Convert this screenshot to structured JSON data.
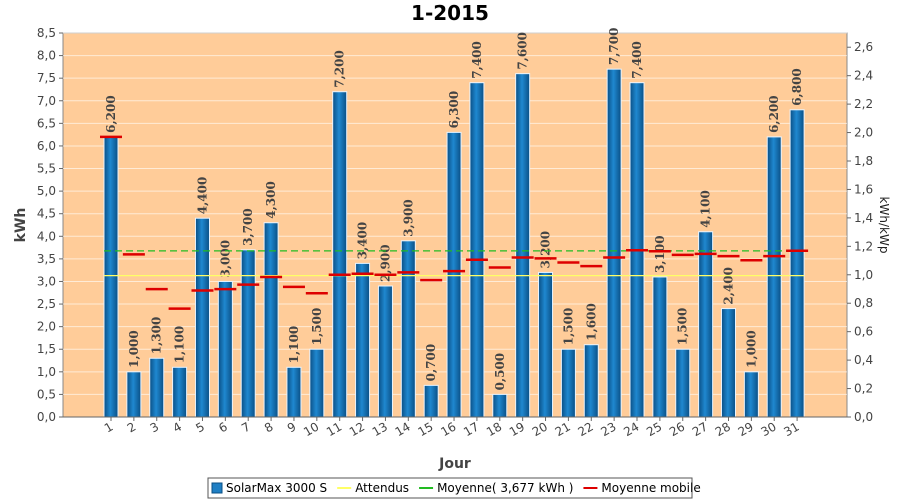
{
  "chart_data": {
    "type": "bar",
    "title": "1-2015",
    "xlabel": "Jour",
    "ylabel": "kWh",
    "ylabel_right": "kWh/kWp",
    "ylim": [
      0,
      8.5
    ],
    "y_ticks": [
      "0,0",
      "0,5",
      "1,0",
      "1,5",
      "2,0",
      "2,5",
      "3,0",
      "3,5",
      "4,0",
      "4,5",
      "5,0",
      "5,5",
      "6,0",
      "6,5",
      "7,0",
      "7,5",
      "8,0",
      "8,5"
    ],
    "ylim_right": [
      0,
      2.7
    ],
    "y_ticks_right": [
      "0,0",
      "0,2",
      "0,4",
      "0,6",
      "0,8",
      "1,0",
      "1,2",
      "1,4",
      "1,6",
      "1,8",
      "2,0",
      "2,2",
      "2,4",
      "2,6"
    ],
    "categories": [
      "1",
      "2",
      "3",
      "4",
      "5",
      "6",
      "7",
      "8",
      "9",
      "10",
      "11",
      "12",
      "13",
      "14",
      "15",
      "16",
      "17",
      "18",
      "19",
      "20",
      "21",
      "22",
      "23",
      "24",
      "25",
      "26",
      "27",
      "28",
      "29",
      "30",
      "31"
    ],
    "series": [
      {
        "name": "SolarMax 3000 S",
        "kind": "bar",
        "color": "#1f7fc4",
        "values": [
          6.2,
          1.0,
          1.3,
          1.1,
          4.4,
          3.0,
          3.7,
          4.3,
          1.1,
          1.5,
          7.2,
          3.4,
          2.9,
          3.9,
          0.7,
          6.3,
          7.4,
          0.5,
          7.6,
          3.2,
          1.5,
          1.6,
          7.7,
          7.4,
          3.1,
          1.5,
          4.1,
          2.4,
          1.0,
          6.2,
          6.8
        ],
        "labels": [
          "6,200",
          "1,000",
          "1,300",
          "1,100",
          "4,400",
          "3,000",
          "3,700",
          "4,300",
          "1,100",
          "1,500",
          "7,200",
          "3,400",
          "2,900",
          "3,900",
          "0,700",
          "6,300",
          "7,400",
          "0,500",
          "7,600",
          "3,200",
          "1,500",
          "1,600",
          "7,700",
          "7,400",
          "3,100",
          "1,500",
          "4,100",
          "2,400",
          "1,000",
          "6,200",
          "6,800"
        ]
      },
      {
        "name": "Attendus",
        "kind": "line",
        "color": "#ffff66",
        "value": 3.13
      },
      {
        "name": "Moyenne( 3,677 kWh )",
        "kind": "line",
        "color": "#22bb22",
        "value": 3.677
      },
      {
        "name": "Moyenne mobile",
        "kind": "step",
        "color": "#dd0000",
        "values": [
          6.2,
          3.6,
          2.83,
          2.4,
          2.8,
          2.83,
          2.93,
          3.1,
          2.88,
          2.74,
          3.15,
          3.17,
          3.15,
          3.2,
          3.03,
          3.23,
          3.48,
          3.31,
          3.53,
          3.51,
          3.42,
          3.34,
          3.53,
          3.69,
          3.67,
          3.59,
          3.61,
          3.56,
          3.47,
          3.56,
          3.68
        ]
      }
    ],
    "legend_position": "bottom",
    "grid": true
  }
}
